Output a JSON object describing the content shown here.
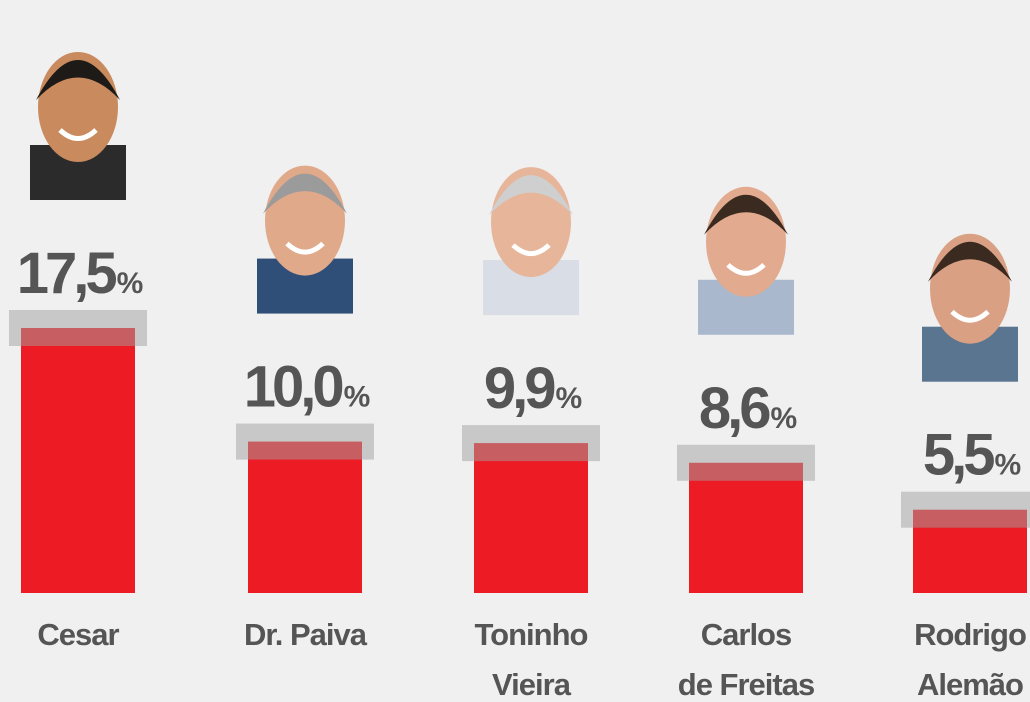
{
  "chart_data": {
    "type": "bar",
    "categories": [
      [
        "Cesar"
      ],
      [
        "Dr. Paiva"
      ],
      [
        "Toninho",
        "Vieira"
      ],
      [
        "Carlos",
        "de Freitas"
      ],
      [
        "Rodrigo",
        "Alemão"
      ]
    ],
    "values": [
      17.5,
      10.0,
      9.9,
      8.6,
      5.5
    ],
    "value_labels": [
      "17,5%",
      "10,0%",
      "9,9%",
      "8,6%",
      "5,5%"
    ],
    "color": "#ed1c24"
  }
}
